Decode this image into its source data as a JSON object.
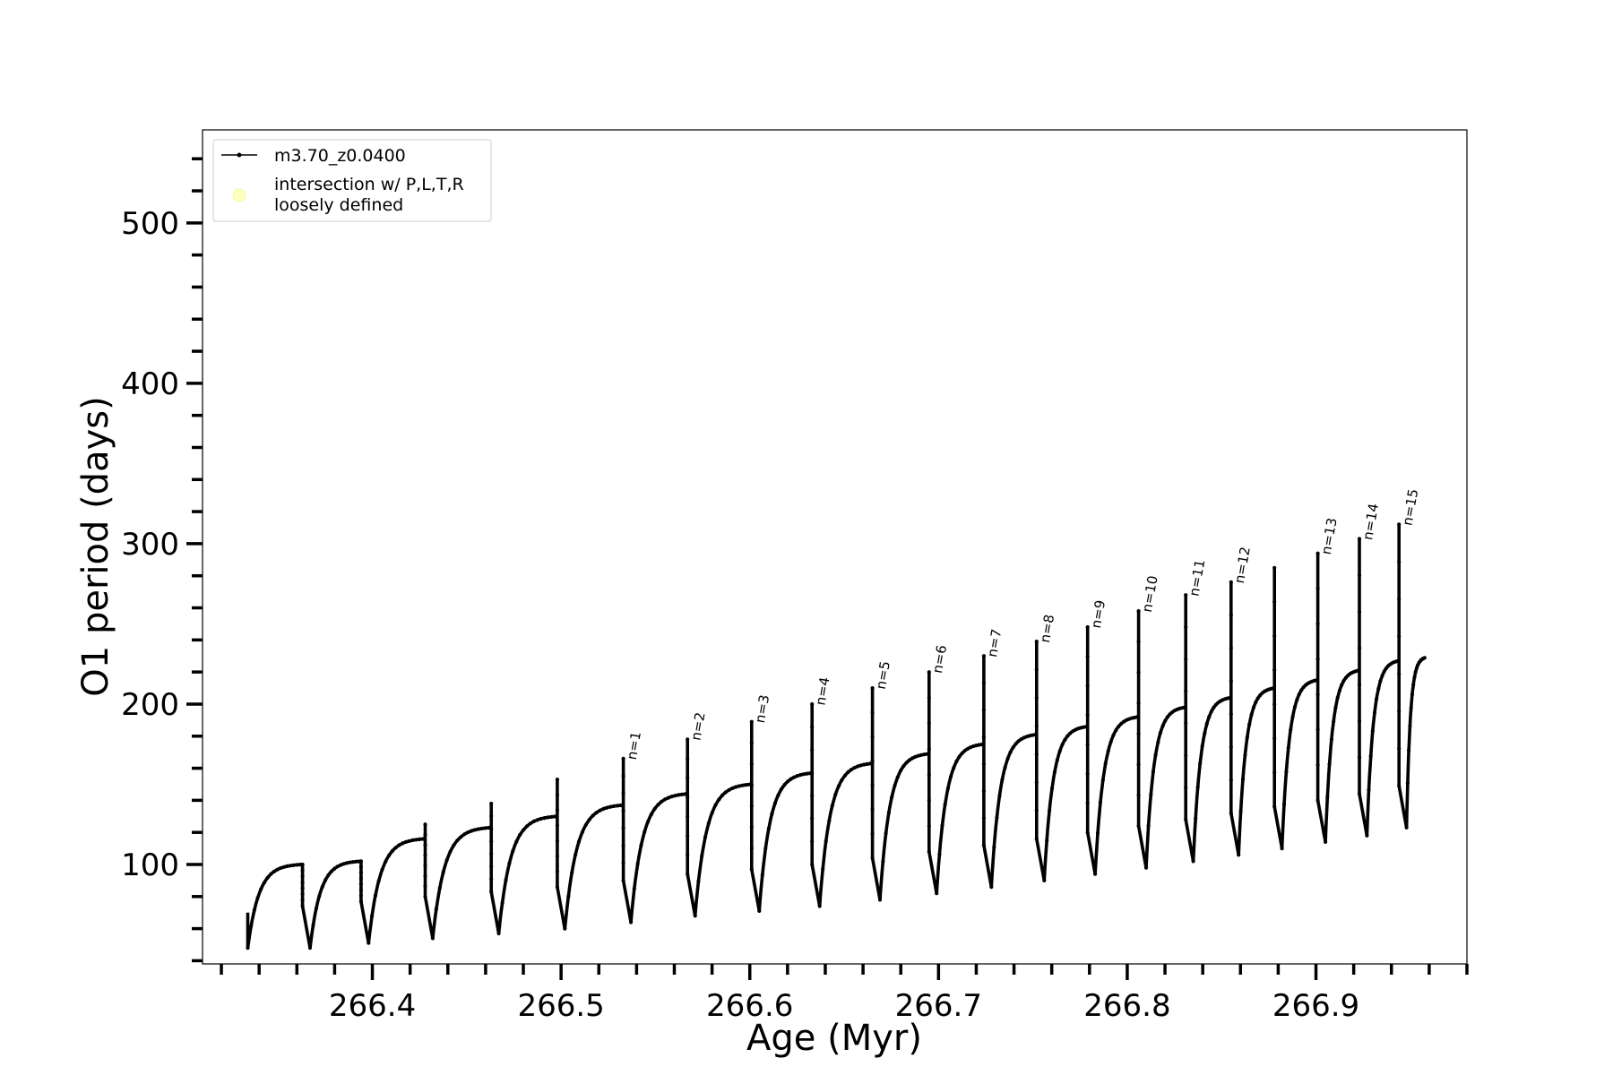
{
  "chart_data": {
    "type": "line",
    "xlabel": "Age (Myr)",
    "ylabel": "O1 period (days)",
    "xlim": [
      266.31,
      266.98
    ],
    "ylim": [
      38,
      558
    ],
    "x_ticks": [
      266.4,
      266.5,
      266.6,
      266.7,
      266.8,
      266.9
    ],
    "x_tick_labels": [
      "266.4",
      "266.5",
      "266.6",
      "266.7",
      "266.8",
      "266.9"
    ],
    "x_minor_step": 0.02,
    "y_ticks": [
      100,
      200,
      300,
      400,
      500
    ],
    "y_tick_labels": [
      "100",
      "200",
      "300",
      "400",
      "500"
    ],
    "y_minor_step": 20,
    "grid": false,
    "legend_position": "top-left",
    "legend": [
      {
        "label": "m3.70_z0.0400",
        "marker": "line-dot",
        "color": "#000000"
      },
      {
        "label": "intersection w/ P,L,T,R\nloosely defined",
        "marker": "circle",
        "color": "#ffffbf"
      }
    ],
    "series": [
      {
        "name": "m3.70_z0.0400",
        "color": "#000000",
        "start": {
          "x": 266.334,
          "y": 48
        },
        "end": {
          "x": 266.958,
          "y": 229
        },
        "pulses": [
          {
            "x": 266.363,
            "low": 48,
            "high": 100,
            "spike": 100
          },
          {
            "x": 266.394,
            "low": 51,
            "high": 102,
            "spike": 102
          },
          {
            "x": 266.428,
            "low": 54,
            "high": 116,
            "spike": 125
          },
          {
            "x": 266.463,
            "low": 57,
            "high": 123,
            "spike": 138
          },
          {
            "x": 266.498,
            "low": 60,
            "high": 130,
            "spike": 153
          },
          {
            "x": 266.533,
            "low": 64,
            "high": 137,
            "spike": 166
          },
          {
            "x": 266.567,
            "low": 68,
            "high": 144,
            "spike": 178
          },
          {
            "x": 266.601,
            "low": 71,
            "high": 150,
            "spike": 189
          },
          {
            "x": 266.633,
            "low": 74,
            "high": 157,
            "spike": 200
          },
          {
            "x": 266.665,
            "low": 78,
            "high": 163,
            "spike": 210
          },
          {
            "x": 266.695,
            "low": 82,
            "high": 169,
            "spike": 220
          },
          {
            "x": 266.724,
            "low": 86,
            "high": 175,
            "spike": 230
          },
          {
            "x": 266.752,
            "low": 90,
            "high": 181,
            "spike": 239
          },
          {
            "x": 266.779,
            "low": 94,
            "high": 186,
            "spike": 248
          },
          {
            "x": 266.806,
            "low": 98,
            "high": 192,
            "spike": 258
          },
          {
            "x": 266.831,
            "low": 102,
            "high": 198,
            "spike": 268
          },
          {
            "x": 266.855,
            "low": 106,
            "high": 204,
            "spike": 276
          },
          {
            "x": 266.878,
            "low": 110,
            "high": 210,
            "spike": 285
          },
          {
            "x": 266.901,
            "low": 114,
            "high": 215,
            "spike": 294
          },
          {
            "x": 266.923,
            "low": 118,
            "high": 221,
            "spike": 303
          },
          {
            "x": 266.944,
            "low": 123,
            "high": 227,
            "spike": 312
          }
        ]
      }
    ],
    "annotations": [
      {
        "text": "n=1",
        "x": 266.533,
        "y": 166
      },
      {
        "text": "n=2",
        "x": 266.567,
        "y": 178
      },
      {
        "text": "n=3",
        "x": 266.601,
        "y": 189
      },
      {
        "text": "n=4",
        "x": 266.633,
        "y": 200
      },
      {
        "text": "n=5",
        "x": 266.665,
        "y": 210
      },
      {
        "text": "n=6",
        "x": 266.695,
        "y": 220
      },
      {
        "text": "n=7",
        "x": 266.724,
        "y": 230
      },
      {
        "text": "n=8",
        "x": 266.752,
        "y": 239
      },
      {
        "text": "n=9",
        "x": 266.779,
        "y": 248
      },
      {
        "text": "n=10",
        "x": 266.806,
        "y": 258
      },
      {
        "text": "n=11",
        "x": 266.831,
        "y": 268
      },
      {
        "text": "n=12",
        "x": 266.855,
        "y": 276
      },
      {
        "text": "n=13",
        "x": 266.901,
        "y": 294
      },
      {
        "text": "n=14",
        "x": 266.923,
        "y": 303
      },
      {
        "text": "n=15",
        "x": 266.944,
        "y": 312
      }
    ]
  }
}
